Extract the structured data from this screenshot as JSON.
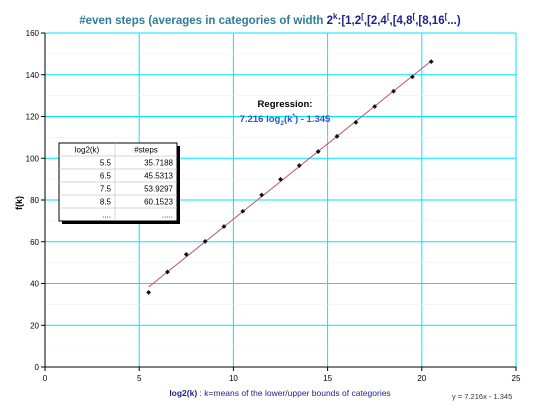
{
  "chart_data": {
    "type": "scatter",
    "title": {
      "prefix": "#even steps (averages in categories of width ",
      "base": "2",
      "sup": "k",
      "suffix": ":[1,2",
      "intervals": "[1,2[,[2,4[,[4,8[,[8,16[...)"
    },
    "title_parts": [
      {
        "text": "#even steps (averages in categories of width ",
        "cls": "ttl-a",
        "sup": false
      },
      {
        "text": "2",
        "cls": "ttl-b",
        "sup": false
      },
      {
        "text": "k",
        "cls": "ttl-b",
        "sup": true
      },
      {
        "text": ":[1,2",
        "cls": "ttl-b",
        "sup": false
      },
      {
        "text": "[",
        "cls": "ttl-b",
        "sup": true
      },
      {
        "text": ",[2,4",
        "cls": "ttl-b",
        "sup": false
      },
      {
        "text": "[",
        "cls": "ttl-b",
        "sup": true
      },
      {
        "text": ",[4,8",
        "cls": "ttl-b",
        "sup": false
      },
      {
        "text": "[",
        "cls": "ttl-b",
        "sup": true
      },
      {
        "text": ",[8,16",
        "cls": "ttl-b",
        "sup": false
      },
      {
        "text": "[",
        "cls": "ttl-b",
        "sup": true
      },
      {
        "text": "...)",
        "cls": "ttl-b",
        "sup": false
      }
    ],
    "xlabel": "log2(k) : k=means of the lower/upper bounds of categories",
    "xlabel_bold": "log2(k)",
    "xlabel_rest": " : k=means of the lower/upper bounds of categories",
    "ylabel": "f(k)",
    "xlim": [
      0,
      25
    ],
    "ylim": [
      0,
      160
    ],
    "xticks": [
      0,
      5,
      10,
      15,
      20,
      25
    ],
    "yticks": [
      0,
      20,
      40,
      60,
      80,
      100,
      120,
      140,
      160
    ],
    "grid": true,
    "series": [
      {
        "x": [
          5.5,
          6.5,
          7.5,
          8.5,
          9.5,
          10.5,
          11.5,
          12.5,
          13.5,
          14.5,
          15.5,
          16.5,
          17.5,
          18.5,
          19.5,
          20.5
        ],
        "y": [
          35.7188,
          45.5313,
          53.9297,
          60.1523,
          67.3,
          74.6,
          82.4,
          89.9,
          96.5,
          103.2,
          110.5,
          117.2,
          124.8,
          132.1,
          139.0,
          146.3
        ],
        "color": "#111111"
      }
    ],
    "trendline": {
      "slope": 7.216,
      "intercept": -1.345,
      "x_range": [
        5.5,
        20.5
      ],
      "color": "#c0506a"
    },
    "trendline_label": "y = 7.216x - 1.345",
    "regression": {
      "heading": "Regression:",
      "coef": "7.216 log",
      "sub": "2",
      "open": "(k",
      "sup": "*",
      "close": ") - 1.345"
    },
    "table": {
      "headers": [
        "log2(k)",
        "#steps"
      ],
      "rows": [
        [
          "5.5",
          "35.7188"
        ],
        [
          "6.5",
          "45.5313"
        ],
        [
          "7.5",
          "53.9297"
        ],
        [
          "8.5",
          "60.1523"
        ],
        [
          "....",
          "....."
        ]
      ]
    },
    "colors": {
      "grid": "#00e5ff",
      "axis": "#000000",
      "title_teal": "#2e7d96",
      "title_navy": "#1f1f8f",
      "xlabel": "#1f1f8f",
      "regression_value": "#2b55c8"
    }
  }
}
